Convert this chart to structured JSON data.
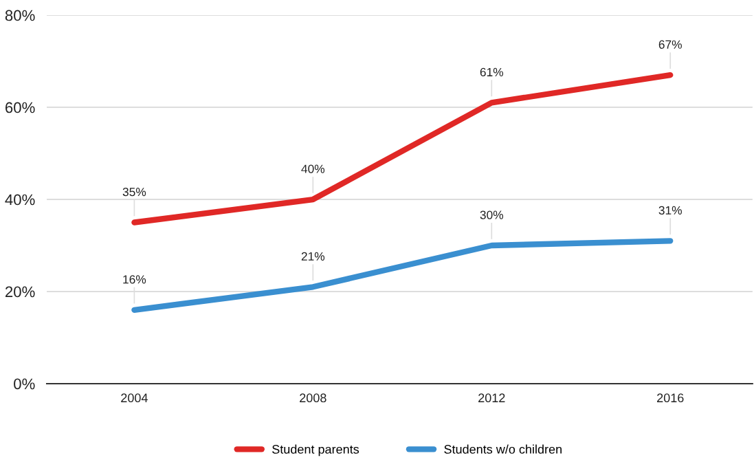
{
  "chart_data": {
    "type": "line",
    "categories": [
      "2004",
      "2008",
      "2012",
      "2016"
    ],
    "series": [
      {
        "name": "Student parents",
        "color": "#e02826",
        "values": [
          35,
          40,
          61,
          67
        ],
        "value_labels": [
          "35%",
          "40%",
          "61%",
          "67%"
        ]
      },
      {
        "name": "Students w/o children",
        "color": "#3a8fd0",
        "values": [
          16,
          21,
          30,
          31
        ],
        "value_labels": [
          "16%",
          "21%",
          "30%",
          "31%"
        ]
      }
    ],
    "ylim": [
      0,
      80
    ],
    "yticks": [
      {
        "value": 0,
        "label": "0%"
      },
      {
        "value": 20,
        "label": "20%"
      },
      {
        "value": 40,
        "label": "40%"
      },
      {
        "value": 60,
        "label": "60%"
      },
      {
        "value": 80,
        "label": "80%"
      }
    ],
    "grid": "y",
    "legend": "bottom",
    "marker": "none",
    "line_style": "solid"
  }
}
